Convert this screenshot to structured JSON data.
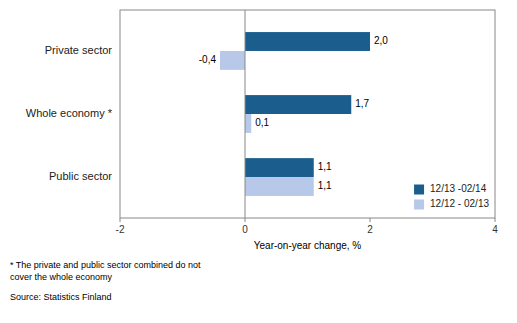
{
  "chart_data": {
    "type": "bar",
    "orientation": "horizontal",
    "categories": [
      "Public sector",
      "Whole economy *",
      "Private sector"
    ],
    "series": [
      {
        "name": "12/13 -02/14",
        "color": "#1B5E8E",
        "values": [
          1.1,
          1.7,
          2.0
        ],
        "value_labels": [
          "1,1",
          "1,7",
          "2,0"
        ]
      },
      {
        "name": "12/12 - 02/13",
        "color": "#B8C8E8",
        "values": [
          1.1,
          0.1,
          -0.4
        ],
        "value_labels": [
          "1,1",
          "0,1",
          "-0,4"
        ]
      }
    ],
    "xlim": [
      -2,
      4
    ],
    "xticks": [
      -2,
      0,
      2,
      4
    ],
    "xlabel": "Year-on-year change, %",
    "data_labels": true,
    "legend": "lower right",
    "grid": false,
    "annotations": [
      "*   The private and public sector combined do not\ncover the whole economy",
      "Source: Statistics Finland"
    ]
  }
}
